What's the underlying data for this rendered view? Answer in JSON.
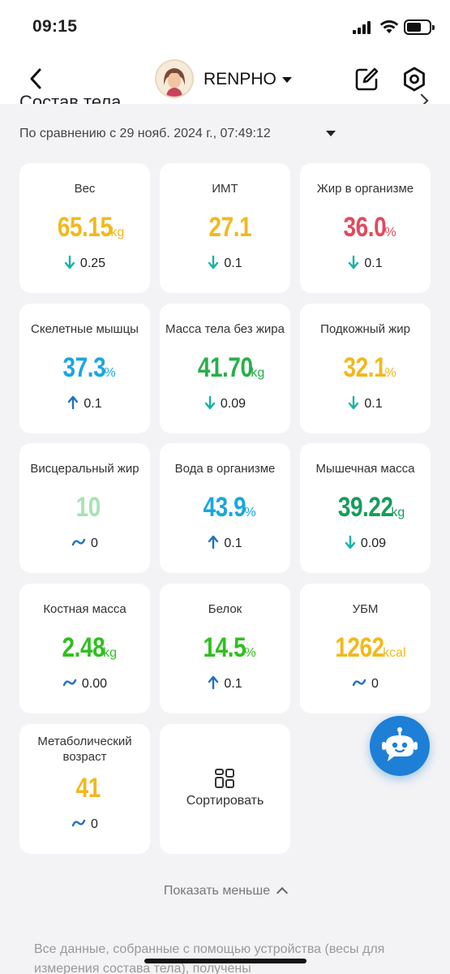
{
  "status_bar": {
    "time": "09:15"
  },
  "header": {
    "brand": "RENPHO"
  },
  "section": {
    "title": "Состав тела"
  },
  "compare": {
    "text": "По сравнению с 29 нояб. 2024 г., 07:49:12"
  },
  "colors": {
    "yellow": "#f2b81c",
    "red": "#e24a5c",
    "cyan": "#18a7e0",
    "green": "#27b04a",
    "dark_green": "#169c5c",
    "light_green": "#a6e3b4",
    "teal_arrow": "#13b3a6",
    "blue_arrow": "#1f6fc6"
  },
  "metrics": [
    {
      "label": "Вес",
      "value": "65.15",
      "unit": "kg",
      "color": "#f2b81c",
      "trend": "down",
      "delta": "0.25"
    },
    {
      "label": "ИМТ",
      "value": "27.1",
      "unit": "",
      "color": "#f2b81c",
      "trend": "down",
      "delta": "0.1"
    },
    {
      "label": "Жир в организме",
      "value": "36.0",
      "unit": "%",
      "color": "#e24a5c",
      "trend": "down",
      "delta": "0.1"
    },
    {
      "label": "Скелетные мышцы",
      "value": "37.3",
      "unit": "%",
      "color": "#18a7e0",
      "trend": "up",
      "delta": "0.1"
    },
    {
      "label": "Масса тела без жира",
      "value": "41.70",
      "unit": "kg",
      "color": "#27b04a",
      "trend": "down",
      "delta": "0.09"
    },
    {
      "label": "Подкожный жир",
      "value": "32.1",
      "unit": "%",
      "color": "#f2b81c",
      "trend": "down",
      "delta": "0.1"
    },
    {
      "label": "Висцеральный жир",
      "value": "10",
      "unit": "",
      "color": "#a6e3b4",
      "trend": "flat",
      "delta": "0"
    },
    {
      "label": "Вода в организме",
      "value": "43.9",
      "unit": "%",
      "color": "#18a7e0",
      "trend": "up",
      "delta": "0.1"
    },
    {
      "label": "Мышечная масса",
      "value": "39.22",
      "unit": "kg",
      "color": "#169c5c",
      "trend": "down",
      "delta": "0.09"
    },
    {
      "label": "Костная масса",
      "value": "2.48",
      "unit": "kg",
      "color": "#2fbf1f",
      "trend": "flat",
      "delta": "0.00"
    },
    {
      "label": "Белок",
      "value": "14.5",
      "unit": "%",
      "color": "#2fbf1f",
      "trend": "up",
      "delta": "0.1"
    },
    {
      "label": "УБМ",
      "value": "1262",
      "unit": "kcal",
      "color": "#f2b81c",
      "trend": "flat",
      "delta": "0"
    },
    {
      "label": "Метаболический возраст",
      "value": "41",
      "unit": "",
      "color": "#f2b81c",
      "trend": "flat",
      "delta": "0"
    }
  ],
  "sort": {
    "label": "Сортировать"
  },
  "show_less": {
    "label": "Показать меньше"
  },
  "footer": {
    "text": "Все данные, собранные с помощью устройства (весы для измерения состава тела), получены"
  }
}
